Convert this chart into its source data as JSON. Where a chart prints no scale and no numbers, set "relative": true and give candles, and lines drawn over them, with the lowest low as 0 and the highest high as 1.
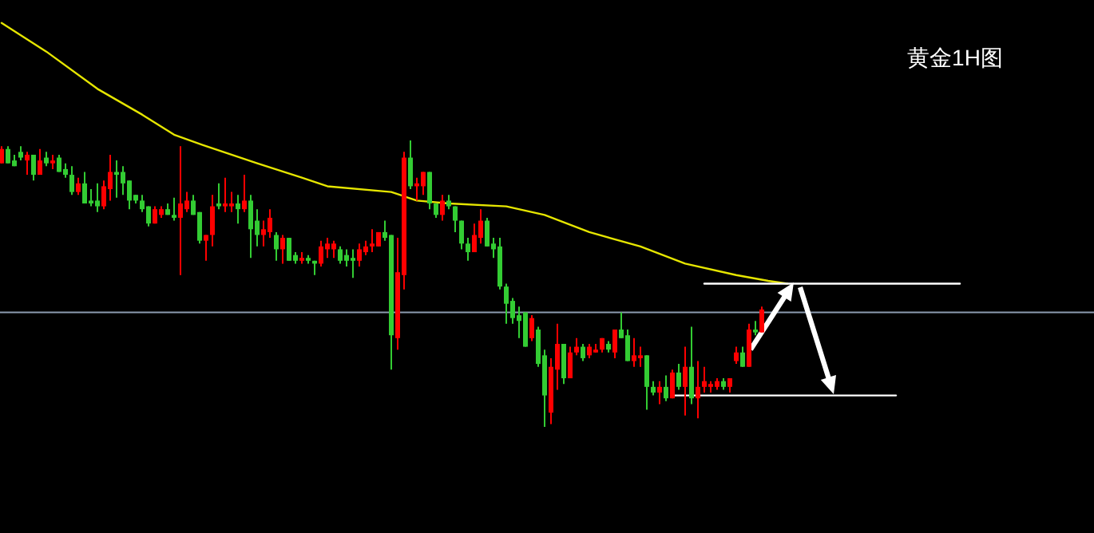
{
  "chart_data": {
    "type": "candlestick",
    "title": "黄金1H图",
    "relative": true,
    "categories": [
      null,
      null,
      null,
      null,
      null,
      null,
      null,
      null,
      null,
      null,
      null,
      null,
      null,
      null,
      null,
      null,
      null,
      null,
      null,
      null,
      null,
      null,
      null,
      null,
      null,
      null,
      null,
      null,
      null,
      null,
      null,
      null,
      null,
      null,
      null,
      null,
      null,
      null,
      null,
      null,
      null,
      null,
      null,
      null,
      null,
      null,
      null,
      null,
      null,
      null,
      null,
      null,
      null,
      null,
      null,
      null,
      null,
      null,
      null,
      null,
      null,
      null,
      null,
      null,
      null,
      null,
      null,
      null,
      null,
      null,
      null,
      null,
      null,
      null,
      null,
      null,
      null,
      null,
      null,
      null,
      null,
      null,
      null,
      null,
      null,
      null,
      null,
      null,
      null,
      null,
      null,
      null,
      null,
      null,
      null,
      null,
      null,
      null,
      null,
      null,
      null,
      null,
      null,
      null,
      null,
      null,
      null,
      null,
      null,
      null,
      null,
      null,
      null,
      null,
      null,
      null,
      null,
      null,
      null,
      null,
      null,
      null,
      null,
      null,
      null,
      null,
      null,
      null,
      null,
      null,
      null,
      null,
      null,
      null,
      null,
      null,
      null,
      null,
      null,
      null,
      null,
      null,
      null,
      null,
      null,
      null,
      null,
      null,
      null,
      null,
      null,
      null
    ],
    "ohlc": [
      [
        0.92,
        0.98,
        0.92,
        0.97
      ],
      [
        0.97,
        0.98,
        0.92,
        0.92
      ],
      [
        0.93,
        0.95,
        0.91,
        0.91
      ],
      [
        0.96,
        0.98,
        0.93,
        0.94
      ],
      [
        0.93,
        0.96,
        0.88,
        0.95
      ],
      [
        0.95,
        0.95,
        0.86,
        0.88
      ],
      [
        0.88,
        0.97,
        0.88,
        0.93
      ],
      [
        0.94,
        0.96,
        0.91,
        0.92
      ],
      [
        0.92,
        0.95,
        0.9,
        0.93
      ],
      [
        0.94,
        0.95,
        0.89,
        0.89
      ],
      [
        0.9,
        0.92,
        0.87,
        0.88
      ],
      [
        0.88,
        0.91,
        0.81,
        0.82
      ],
      [
        0.82,
        0.87,
        0.81,
        0.85
      ],
      [
        0.85,
        0.89,
        0.78,
        0.78
      ],
      [
        0.79,
        0.83,
        0.77,
        0.78
      ],
      [
        0.79,
        0.85,
        0.75,
        0.77
      ],
      [
        0.77,
        0.86,
        0.76,
        0.84
      ],
      [
        0.83,
        0.95,
        0.79,
        0.89
      ],
      [
        0.89,
        0.93,
        0.8,
        0.88
      ],
      [
        0.89,
        0.91,
        0.81,
        0.85
      ],
      [
        0.86,
        0.86,
        0.76,
        0.79
      ],
      [
        0.81,
        0.81,
        0.78,
        0.79
      ],
      [
        0.79,
        0.81,
        0.75,
        0.76
      ],
      [
        0.77,
        0.77,
        0.7,
        0.71
      ],
      [
        0.71,
        0.77,
        0.71,
        0.76
      ],
      [
        0.74,
        0.77,
        0.73,
        0.76
      ],
      [
        0.76,
        0.78,
        0.74,
        0.74
      ],
      [
        0.74,
        0.8,
        0.72,
        0.73
      ],
      [
        0.73,
        0.98,
        0.53,
        0.78
      ],
      [
        0.76,
        0.82,
        0.75,
        0.79
      ],
      [
        0.79,
        0.81,
        0.74,
        0.74
      ],
      [
        0.75,
        0.75,
        0.64,
        0.65
      ],
      [
        0.65,
        0.67,
        0.58,
        0.67
      ],
      [
        0.67,
        0.81,
        0.63,
        0.77
      ],
      [
        0.78,
        0.85,
        0.76,
        0.77
      ],
      [
        0.77,
        0.87,
        0.75,
        0.78
      ],
      [
        0.77,
        0.82,
        0.75,
        0.78
      ],
      [
        0.78,
        0.81,
        0.71,
        0.76
      ],
      [
        0.76,
        0.88,
        0.75,
        0.79
      ],
      [
        0.79,
        0.81,
        0.59,
        0.69
      ],
      [
        0.72,
        0.76,
        0.63,
        0.67
      ],
      [
        0.67,
        0.72,
        0.63,
        0.69
      ],
      [
        0.68,
        0.76,
        0.66,
        0.73
      ],
      [
        0.67,
        0.68,
        0.58,
        0.62
      ],
      [
        0.62,
        0.67,
        0.57,
        0.66
      ],
      [
        0.66,
        0.66,
        0.58,
        0.58
      ],
      [
        0.6,
        0.61,
        0.57,
        0.58
      ],
      [
        0.58,
        0.61,
        0.57,
        0.59
      ],
      [
        0.59,
        0.6,
        0.57,
        0.58
      ],
      [
        0.58,
        0.58,
        0.53,
        0.57
      ],
      [
        0.57,
        0.65,
        0.56,
        0.63
      ],
      [
        0.62,
        0.66,
        0.59,
        0.64
      ],
      [
        0.62,
        0.65,
        0.59,
        0.64
      ],
      [
        0.62,
        0.63,
        0.57,
        0.58
      ],
      [
        0.6,
        0.62,
        0.56,
        0.58
      ],
      [
        0.59,
        0.62,
        0.52,
        0.58
      ],
      [
        0.58,
        0.64,
        0.56,
        0.62
      ],
      [
        0.61,
        0.65,
        0.6,
        0.63
      ],
      [
        0.63,
        0.69,
        0.61,
        0.64
      ],
      [
        0.63,
        0.68,
        0.63,
        0.68
      ],
      [
        0.68,
        0.72,
        0.65,
        0.66
      ],
      [
        0.67,
        0.67,
        0.2,
        0.32
      ],
      [
        0.31,
        0.66,
        0.27,
        0.54
      ],
      [
        0.53,
        0.96,
        0.48,
        0.94
      ],
      [
        0.94,
        1.0,
        0.83,
        0.84
      ],
      [
        0.84,
        0.87,
        0.79,
        0.85
      ],
      [
        0.84,
        0.89,
        0.81,
        0.89
      ],
      [
        0.89,
        0.89,
        0.76,
        0.78
      ],
      [
        0.78,
        0.78,
        0.73,
        0.74
      ],
      [
        0.74,
        0.81,
        0.72,
        0.79
      ],
      [
        0.79,
        0.81,
        0.76,
        0.77
      ],
      [
        0.77,
        0.77,
        0.68,
        0.72
      ],
      [
        0.72,
        0.72,
        0.62,
        0.64
      ],
      [
        0.64,
        0.66,
        0.58,
        0.61
      ],
      [
        0.61,
        0.71,
        0.61,
        0.67
      ],
      [
        0.66,
        0.76,
        0.64,
        0.72
      ],
      [
        0.72,
        0.73,
        0.63,
        0.63
      ],
      [
        0.64,
        0.66,
        0.59,
        0.62
      ],
      [
        0.63,
        0.66,
        0.48,
        0.49
      ],
      [
        0.49,
        0.5,
        0.36,
        0.43
      ],
      [
        0.44,
        0.45,
        0.36,
        0.38
      ],
      [
        0.39,
        0.42,
        0.31,
        0.37
      ],
      [
        0.4,
        0.4,
        0.28,
        0.28
      ],
      [
        0.31,
        0.39,
        0.3,
        0.38
      ],
      [
        0.34,
        0.35,
        0.21,
        0.22
      ],
      [
        0.25,
        0.27,
        0,
        0.11
      ],
      [
        0.05,
        0.24,
        0.01,
        0.21
      ],
      [
        0.2,
        0.36,
        0.13,
        0.29
      ],
      [
        0.29,
        0.29,
        0.15,
        0.17
      ],
      [
        0.17,
        0.28,
        0.17,
        0.26
      ],
      [
        0.26,
        0.31,
        0.25,
        0.28
      ],
      [
        0.28,
        0.29,
        0.23,
        0.24
      ],
      [
        0.25,
        0.29,
        0.24,
        0.28
      ],
      [
        0.26,
        0.29,
        0.26,
        0.27
      ],
      [
        0.27,
        0.31,
        0.26,
        0.31
      ],
      [
        0.29,
        0.3,
        0.26,
        0.27
      ],
      [
        0.26,
        0.34,
        0.24,
        0.34
      ],
      [
        0.34,
        0.4,
        0.31,
        0.31
      ],
      [
        0.32,
        0.34,
        0.23,
        0.23
      ],
      [
        0.23,
        0.31,
        0.21,
        0.25
      ],
      [
        0.24,
        0.28,
        0.21,
        0.25
      ],
      [
        0.25,
        0.25,
        0.06,
        0.14
      ],
      [
        0.14,
        0.16,
        0.11,
        0.12
      ],
      [
        0.12,
        0.16,
        0.08,
        0.14
      ],
      [
        0.14,
        0.18,
        0.09,
        0.1
      ],
      [
        0.1,
        0.2,
        0.1,
        0.19
      ],
      [
        0.19,
        0.22,
        0.13,
        0.14
      ],
      [
        0.14,
        0.28,
        0.04,
        0.21
      ],
      [
        0.21,
        0.35,
        0.08,
        0.1
      ],
      [
        0.1,
        0.23,
        0.03,
        0.14
      ],
      [
        0.14,
        0.21,
        0.12,
        0.16
      ],
      [
        0.14,
        0.16,
        0.12,
        0.15
      ],
      [
        0.14,
        0.17,
        0.13,
        0.16
      ],
      [
        0.16,
        0.17,
        0.13,
        0.14
      ],
      [
        0.14,
        0.17,
        0.12,
        0.17
      ],
      [
        0.23,
        0.28,
        0.22,
        0.26
      ],
      [
        0.26,
        0.28,
        0.21,
        0.21
      ],
      [
        0.21,
        0.36,
        0.21,
        0.34
      ],
      [
        0.34,
        0.37,
        0.32,
        0.33
      ],
      [
        0.33,
        0.42,
        0.33,
        0.41
      ],
      null,
      null,
      null,
      null,
      null,
      null,
      null,
      null,
      null,
      null,
      null,
      null,
      null,
      null,
      null,
      null,
      null,
      null,
      null,
      null,
      null,
      null,
      null,
      null,
      null,
      null,
      null,
      null,
      null,
      null,
      null,
      null
    ],
    "colors": [
      "#ff0000",
      "#33cc33",
      "#33cc33",
      "#33cc33",
      "#ff0000",
      "#33cc33",
      "#ff0000",
      "#33cc33",
      "#ff0000",
      "#33cc33",
      "#33cc33",
      "#33cc33",
      "#ff0000",
      "#33cc33",
      "#33cc33",
      "#33cc33",
      "#ff0000",
      "#ff0000",
      "#33cc33",
      "#33cc33",
      "#33cc33",
      "#33cc33",
      "#33cc33",
      "#33cc33",
      "#ff0000",
      "#ff0000",
      "#33cc33",
      "#33cc33",
      "#ff0000",
      "#ff0000",
      "#33cc33",
      "#33cc33",
      "#ff0000",
      "#ff0000",
      "#33cc33",
      "#ff0000",
      "#ff0000",
      "#33cc33",
      "#ff0000",
      "#33cc33",
      "#33cc33",
      "#ff0000",
      "#ff0000",
      "#33cc33",
      "#ff0000",
      "#33cc33",
      "#33cc33",
      "#ff0000",
      "#33cc33",
      "#33cc33",
      "#ff0000",
      "#ff0000",
      "#ff0000",
      "#33cc33",
      "#33cc33",
      "#33cc33",
      "#ff0000",
      "#ff0000",
      "#ff0000",
      "#ff0000",
      "#33cc33",
      "#33cc33",
      "#ff0000",
      "#ff0000",
      "#33cc33",
      "#ff0000",
      "#ff0000",
      "#33cc33",
      "#33cc33",
      "#ff0000",
      "#33cc33",
      "#33cc33",
      "#33cc33",
      "#33cc33",
      "#ff0000",
      "#ff0000",
      "#33cc33",
      "#33cc33",
      "#33cc33",
      "#33cc33",
      "#33cc33",
      "#33cc33",
      "#33cc33",
      "#ff0000",
      "#33cc33",
      "#33cc33",
      "#ff0000",
      "#ff0000",
      "#33cc33",
      "#ff0000",
      "#ff0000",
      "#33cc33",
      "#ff0000",
      "#ff0000",
      "#ff0000",
      "#33cc33",
      "#ff0000",
      "#33cc33",
      "#33cc33",
      "#ff0000",
      "#ff0000",
      "#33cc33",
      "#33cc33",
      "#ff0000",
      "#33cc33",
      "#ff0000",
      "#33cc33",
      "#ff0000",
      "#33cc33",
      "#ff0000",
      "#ff0000",
      "#ff0000",
      "#ff0000",
      "#33cc33",
      "#ff0000",
      "#ff0000",
      "#33cc33",
      "#ff0000",
      "#33cc33",
      "#ff0000",
      null,
      null,
      null,
      null,
      null,
      null,
      null,
      null,
      null,
      null,
      null,
      null,
      null,
      null,
      null,
      null,
      null,
      null,
      null,
      null,
      null,
      null,
      null,
      null,
      null,
      null,
      null,
      null,
      null,
      null,
      null,
      null
    ],
    "series": [
      {
        "type": "line",
        "color": "#e6e600",
        "values": [
          1.41,
          null,
          null,
          null,
          null,
          null,
          null,
          1.31,
          null,
          null,
          null,
          null,
          null,
          null,
          null,
          1.18,
          null,
          null,
          null,
          null,
          null,
          null,
          1.09,
          null,
          null,
          null,
          null,
          1.02,
          null,
          null,
          null,
          null,
          0.98,
          null,
          null,
          null,
          null,
          null,
          null,
          null,
          0.92,
          null,
          null,
          null,
          null,
          null,
          null,
          0.87,
          null,
          null,
          null,
          0.84,
          null,
          null,
          null,
          null,
          null,
          null,
          null,
          null,
          null,
          0.82,
          null,
          null,
          null,
          0.79,
          null,
          null,
          null,
          null,
          0.78,
          null,
          null,
          null,
          null,
          null,
          null,
          null,
          null,
          0.77,
          null,
          null,
          null,
          null,
          null,
          0.74,
          null,
          null,
          null,
          null,
          null,
          null,
          0.68,
          null,
          null,
          null,
          null,
          null,
          null,
          null,
          0.63,
          null,
          null,
          null,
          null,
          null,
          null,
          0.57,
          null,
          null,
          null,
          null,
          null,
          null,
          null,
          0.53,
          null,
          null,
          null,
          null,
          0.51,
          null,
          null,
          0.5,
          null,
          null,
          null,
          null,
          null,
          null,
          null,
          null,
          null,
          null,
          null,
          null,
          null,
          null,
          null,
          null,
          null,
          null,
          null,
          null,
          null,
          null,
          null,
          null,
          null,
          null,
          null,
          null
        ]
      },
      {
        "type": "line",
        "color": "#ffffff",
        "values": [
          null,
          null,
          null,
          null,
          null,
          null,
          null,
          null,
          null,
          null,
          null,
          null,
          null,
          null,
          null,
          null,
          null,
          null,
          null,
          null,
          null,
          null,
          null,
          null,
          null,
          null,
          null,
          null,
          null,
          null,
          null,
          null,
          null,
          null,
          null,
          null,
          null,
          null,
          null,
          null,
          null,
          null,
          null,
          null,
          null,
          null,
          null,
          null,
          null,
          null,
          null,
          null,
          null,
          null,
          null,
          null,
          null,
          null,
          null,
          null,
          null,
          null,
          null,
          null,
          null,
          null,
          null,
          null,
          null,
          null,
          null,
          null,
          null,
          null,
          null,
          null,
          null,
          null,
          null,
          null,
          null,
          null,
          null,
          null,
          null,
          null,
          null,
          null,
          null,
          null,
          null,
          null,
          null,
          null,
          null,
          null,
          null,
          null,
          null,
          null,
          null,
          null,
          null,
          null,
          null,
          null,
          null,
          null,
          null,
          null,
          0.5,
          null,
          null,
          null,
          null,
          null,
          null,
          null,
          null,
          null,
          null,
          null,
          null,
          null,
          null,
          null,
          null,
          null,
          null,
          null,
          null,
          null,
          null,
          null,
          null,
          null,
          null,
          null,
          null,
          null,
          null,
          null,
          null,
          null,
          null,
          null,
          null,
          null,
          null,
          null,
          0.5,
          null
        ]
      },
      {
        "type": "line",
        "color": "#ffffff",
        "values": [
          null,
          null,
          null,
          null,
          null,
          null,
          null,
          null,
          null,
          null,
          null,
          null,
          null,
          null,
          null,
          null,
          null,
          null,
          null,
          null,
          null,
          null,
          null,
          null,
          null,
          null,
          null,
          null,
          null,
          null,
          null,
          null,
          null,
          null,
          null,
          null,
          null,
          null,
          null,
          null,
          null,
          null,
          null,
          null,
          null,
          null,
          null,
          null,
          null,
          null,
          null,
          null,
          null,
          null,
          null,
          null,
          null,
          null,
          null,
          null,
          null,
          null,
          null,
          null,
          null,
          null,
          null,
          null,
          null,
          null,
          null,
          null,
          null,
          null,
          null,
          null,
          null,
          null,
          null,
          null,
          null,
          null,
          null,
          null,
          null,
          null,
          null,
          null,
          null,
          null,
          null,
          null,
          null,
          null,
          null,
          null,
          null,
          null,
          null,
          null,
          null,
          null,
          null,
          null,
          null,
          0.11,
          null,
          null,
          null,
          null,
          null,
          null,
          null,
          null,
          null,
          null,
          null,
          null,
          null,
          null,
          null,
          null,
          null,
          null,
          null,
          null,
          null,
          null,
          null,
          null,
          null,
          null,
          null,
          null,
          null,
          null,
          null,
          null,
          null,
          null,
          0.11,
          null,
          null,
          null,
          null,
          null,
          null,
          null,
          null,
          null,
          null,
          null
        ]
      }
    ],
    "ref_lines": [
      {
        "axis": "y",
        "value": 0.4,
        "color": "#8c9bb0"
      }
    ]
  }
}
